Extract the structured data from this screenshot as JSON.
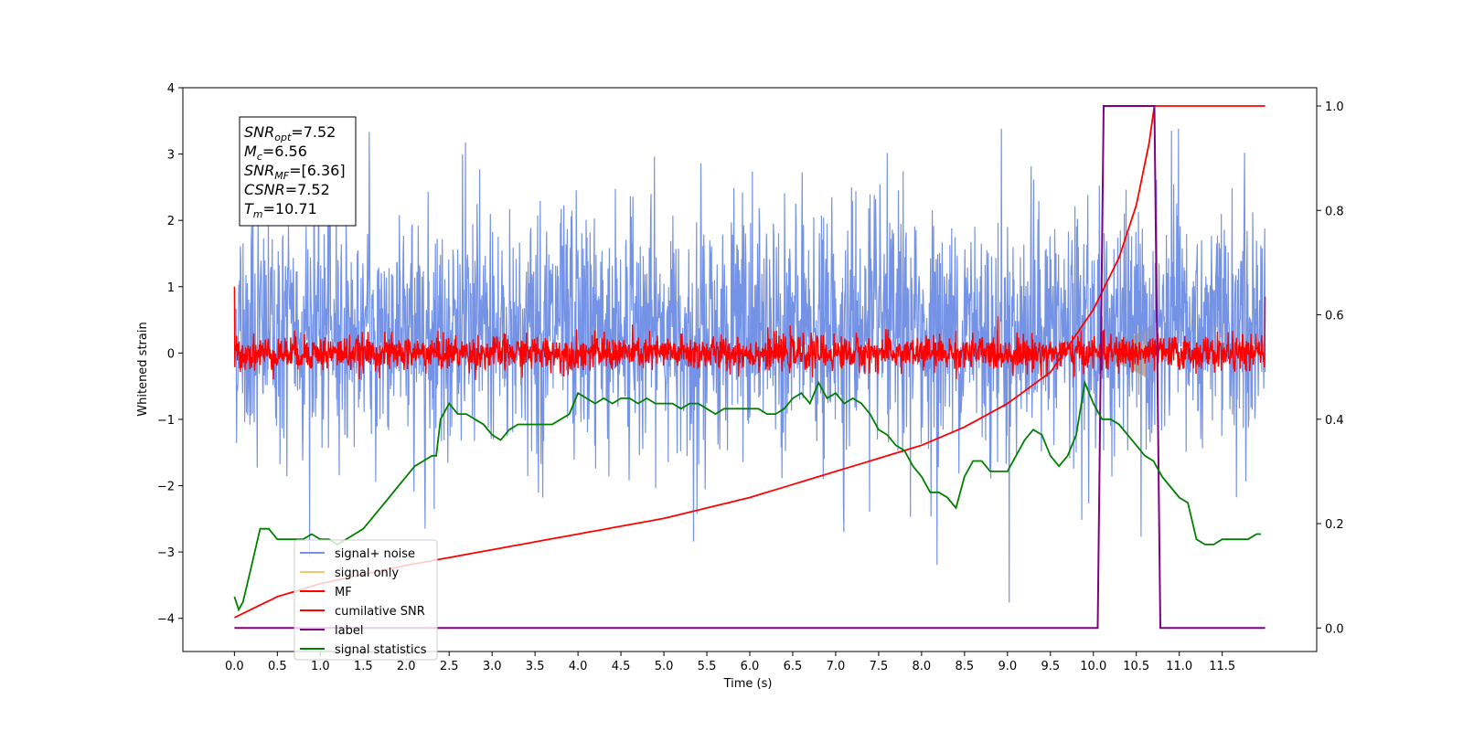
{
  "chart_data": {
    "type": "line",
    "xlabel": "Time (s)",
    "ylabel": "Whitened strain",
    "xlim": [
      -0.6,
      12.6
    ],
    "ylim": [
      -4.5,
      4.0
    ],
    "y2lim": [
      -0.045,
      1.035
    ],
    "xticks": [
      0.0,
      0.5,
      1.0,
      1.5,
      2.0,
      2.5,
      3.0,
      3.5,
      4.0,
      4.5,
      5.0,
      5.5,
      6.0,
      6.5,
      7.0,
      7.5,
      8.0,
      8.5,
      9.0,
      9.5,
      10.0,
      10.5,
      11.0,
      11.5
    ],
    "xtick_labels": [
      "0.0",
      "0.5",
      "1.0",
      "1.5",
      "2.0",
      "2.5",
      "3.0",
      "3.5",
      "4.0",
      "4.5",
      "5.0",
      "5.5",
      "6.0",
      "6.5",
      "7.0",
      "7.5",
      "8.0",
      "8.5",
      "9.0",
      "9.5",
      "10.0",
      "10.5",
      "11.0",
      "11.5"
    ],
    "yticks": [
      -4,
      -3,
      -2,
      -1,
      0,
      1,
      2,
      3,
      4
    ],
    "ytick_labels": [
      "−4",
      "−3",
      "−2",
      "−1",
      "0",
      "1",
      "2",
      "3",
      "4"
    ],
    "y2ticks": [
      0.0,
      0.2,
      0.4,
      0.6,
      0.8,
      1.0
    ],
    "y2tick_labels": [
      "0.0",
      "0.2",
      "0.4",
      "0.6",
      "0.8",
      "1.0"
    ],
    "legend_position": "lower-left",
    "grid": false,
    "annotation": {
      "lines": [
        {
          "base": "SNR",
          "sub": "opt",
          "rest": "=7.52"
        },
        {
          "base": "M",
          "sub": "c",
          "rest": "=6.56"
        },
        {
          "base": "SNR",
          "sub": "MF",
          "rest": "=[6.36]"
        },
        {
          "base": "CSNR",
          "sub": "",
          "rest": "=7.52"
        },
        {
          "base": "T",
          "sub": "m",
          "rest": "=10.71"
        }
      ]
    },
    "series": [
      {
        "name": "signal+ noise",
        "axis": "left",
        "color": "#7593e6",
        "description": "whitened noise plus signal, sampled densely from 0.0 to 12.0 s",
        "x_range": [
          0.0,
          12.0
        ],
        "noise_std": 0.7,
        "offset": 0.35,
        "min": -4.15,
        "max": 3.38
      },
      {
        "name": "signal only",
        "axis": "left",
        "color": "#f2c86e",
        "description": "chirp signal growing from about 9.6 s to 10.71 s",
        "x_range": [
          9.6,
          10.71
        ],
        "amplitude_end": 0.45
      },
      {
        "name": "MF",
        "axis": "left",
        "color": "#ff0000",
        "description": "matched filter output around zero",
        "x_range": [
          0.0,
          12.0
        ],
        "noise_std": 0.13,
        "start_value": 1.0,
        "end_value": 0.85
      },
      {
        "name": "cumilative SNR",
        "axis": "right",
        "color": "#ff0000",
        "x": [
          0.0,
          0.5,
          1.0,
          2.0,
          3.0,
          4.0,
          5.0,
          6.0,
          7.0,
          8.0,
          8.5,
          9.0,
          9.5,
          10.0,
          10.3,
          10.5,
          10.65,
          10.71,
          12.0
        ],
        "values": [
          0.02,
          0.06,
          0.085,
          0.12,
          0.15,
          0.18,
          0.21,
          0.25,
          0.3,
          0.35,
          0.385,
          0.43,
          0.49,
          0.61,
          0.71,
          0.81,
          0.93,
          1.0,
          1.0
        ]
      },
      {
        "name": "label",
        "axis": "right",
        "color": "#800080",
        "x": [
          0.0,
          10.05,
          10.12,
          10.71,
          10.78,
          12.0
        ],
        "values": [
          0.0,
          0.0,
          1.0,
          1.0,
          0.0,
          0.0
        ]
      },
      {
        "name": "signal statistics",
        "axis": "right",
        "color": "#008000",
        "x": [
          0.0,
          0.05,
          0.1,
          0.2,
          0.3,
          0.4,
          0.5,
          0.6,
          0.7,
          0.8,
          0.9,
          1.0,
          1.1,
          1.2,
          1.3,
          1.4,
          1.5,
          1.6,
          1.7,
          1.8,
          1.9,
          2.0,
          2.1,
          2.2,
          2.3,
          2.35,
          2.4,
          2.5,
          2.6,
          2.7,
          2.8,
          2.9,
          3.0,
          3.1,
          3.2,
          3.3,
          3.4,
          3.5,
          3.6,
          3.7,
          3.8,
          3.9,
          4.0,
          4.1,
          4.2,
          4.3,
          4.4,
          4.5,
          4.6,
          4.7,
          4.8,
          4.9,
          5.0,
          5.1,
          5.2,
          5.3,
          5.4,
          5.5,
          5.6,
          5.7,
          5.8,
          5.9,
          6.0,
          6.1,
          6.2,
          6.3,
          6.4,
          6.5,
          6.6,
          6.7,
          6.8,
          6.9,
          7.0,
          7.1,
          7.2,
          7.3,
          7.4,
          7.5,
          7.6,
          7.7,
          7.8,
          7.9,
          8.0,
          8.1,
          8.2,
          8.3,
          8.4,
          8.5,
          8.6,
          8.7,
          8.8,
          8.9,
          9.0,
          9.1,
          9.2,
          9.3,
          9.4,
          9.5,
          9.6,
          9.7,
          9.8,
          9.9,
          10.0,
          10.1,
          10.2,
          10.3,
          10.4,
          10.5,
          10.6,
          10.7,
          10.8,
          10.9,
          11.0,
          11.1,
          11.2,
          11.3,
          11.4,
          11.5,
          11.6,
          11.7,
          11.8,
          11.9,
          11.95
        ],
        "values": [
          0.06,
          0.035,
          0.05,
          0.12,
          0.19,
          0.19,
          0.17,
          0.17,
          0.17,
          0.17,
          0.18,
          0.17,
          0.17,
          0.16,
          0.17,
          0.18,
          0.19,
          0.21,
          0.23,
          0.25,
          0.27,
          0.29,
          0.31,
          0.32,
          0.33,
          0.33,
          0.4,
          0.43,
          0.41,
          0.41,
          0.4,
          0.39,
          0.37,
          0.36,
          0.38,
          0.39,
          0.39,
          0.39,
          0.39,
          0.39,
          0.4,
          0.41,
          0.45,
          0.44,
          0.43,
          0.44,
          0.43,
          0.44,
          0.44,
          0.43,
          0.44,
          0.43,
          0.43,
          0.43,
          0.42,
          0.43,
          0.43,
          0.42,
          0.41,
          0.42,
          0.42,
          0.42,
          0.42,
          0.42,
          0.41,
          0.41,
          0.42,
          0.44,
          0.45,
          0.43,
          0.47,
          0.44,
          0.45,
          0.43,
          0.44,
          0.43,
          0.41,
          0.38,
          0.37,
          0.35,
          0.34,
          0.31,
          0.29,
          0.26,
          0.26,
          0.25,
          0.23,
          0.29,
          0.32,
          0.32,
          0.3,
          0.3,
          0.3,
          0.33,
          0.36,
          0.38,
          0.37,
          0.33,
          0.31,
          0.33,
          0.37,
          0.47,
          0.43,
          0.4,
          0.4,
          0.39,
          0.37,
          0.35,
          0.33,
          0.32,
          0.29,
          0.27,
          0.25,
          0.24,
          0.17,
          0.16,
          0.16,
          0.17,
          0.17,
          0.17,
          0.17,
          0.18,
          0.18
        ]
      }
    ]
  }
}
